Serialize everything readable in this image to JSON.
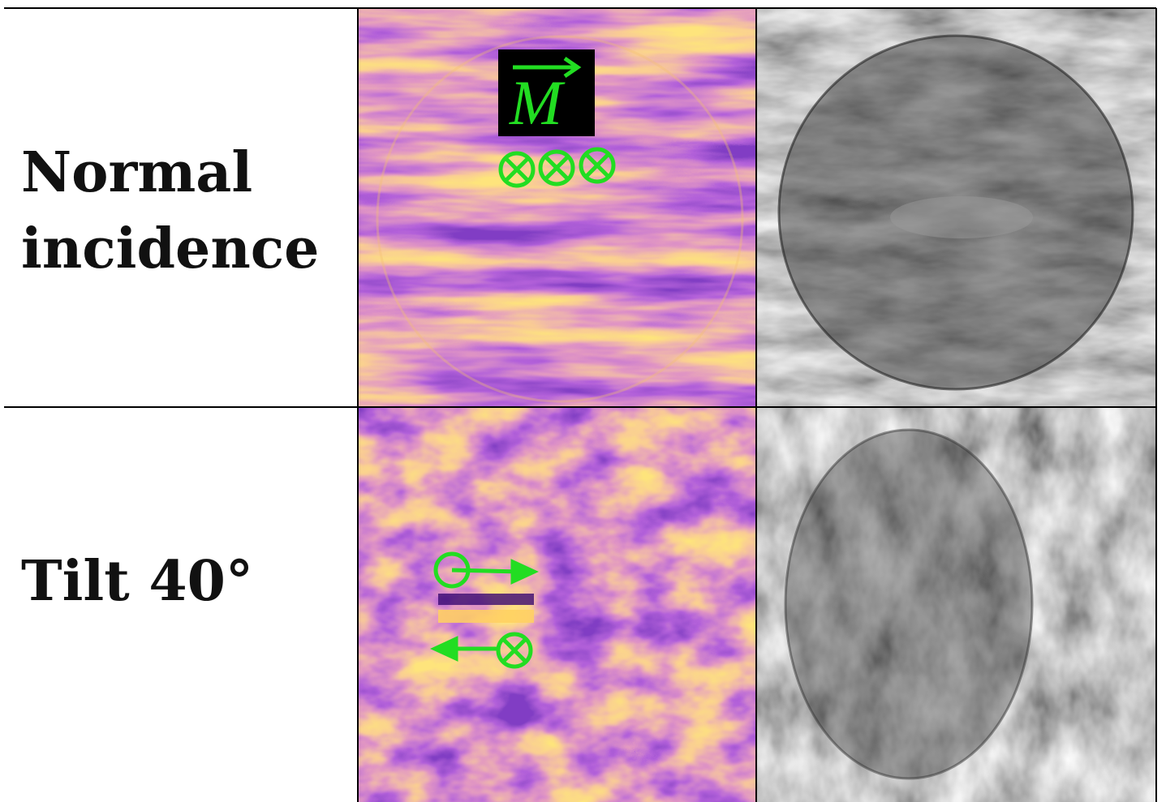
{
  "rows": [
    {
      "label": [
        "Normal",
        "incidence"
      ],
      "annotation": "M"
    },
    {
      "label": [
        "Tilt 40°"
      ]
    }
  ]
}
